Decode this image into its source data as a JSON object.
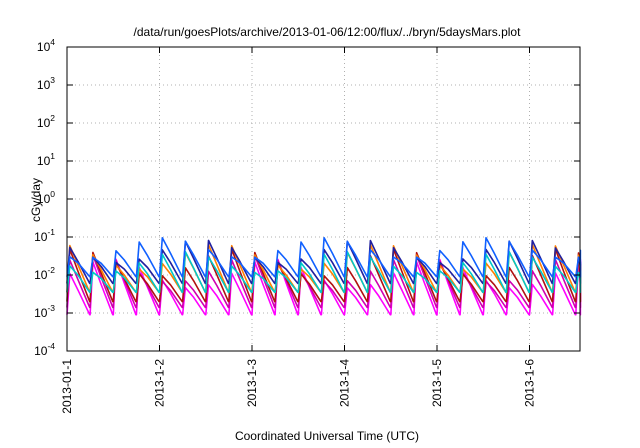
{
  "chart_data": {
    "type": "line",
    "title": "/data/run/goesPlots/archive/2013-01-06/12:00/flux/../bryn/5daysMars.plot",
    "xlabel": "Coordinated Universal Time (UTC)",
    "ylabel": "cGy/day",
    "yscale": "log",
    "ylim": [
      0.0001,
      10000
    ],
    "y_ticks": [
      {
        "base": "10",
        "exp": "-4",
        "value": 0.0001
      },
      {
        "base": "10",
        "exp": "-3",
        "value": 0.001
      },
      {
        "base": "10",
        "exp": "-2",
        "value": 0.01
      },
      {
        "base": "10",
        "exp": "-1",
        "value": 0.1
      },
      {
        "base": "10",
        "exp": "0",
        "value": 1
      },
      {
        "base": "10",
        "exp": "1",
        "value": 10
      },
      {
        "base": "10",
        "exp": "2",
        "value": 100
      },
      {
        "base": "10",
        "exp": "3",
        "value": 1000
      },
      {
        "base": "10",
        "exp": "4",
        "value": 10000
      }
    ],
    "x_ticks": [
      "2013-01-1",
      "2013-1-2",
      "2013-1-3",
      "2013-1-4",
      "2013-1-5",
      "2013-1-6"
    ],
    "xlim_days": [
      0,
      5.55
    ],
    "grid": true,
    "legend": "none",
    "series": [
      {
        "color": "#ff00ff",
        "peak": 0.017,
        "trough": 0.0009
      },
      {
        "color": "#d000b0",
        "peak": 0.022,
        "trough": 0.0014
      },
      {
        "color": "#b01010",
        "peak": 0.032,
        "trough": 0.002
      },
      {
        "color": "#ff8000",
        "peak": 0.045,
        "trough": 0.0035
      },
      {
        "color": "#2020a0",
        "peak": 0.06,
        "trough": 0.006
      },
      {
        "color": "#00c8c8",
        "peak": 0.03,
        "trough": 0.0035
      },
      {
        "color": "#1060ff",
        "peak": 0.07,
        "trough": 0.009
      }
    ]
  }
}
